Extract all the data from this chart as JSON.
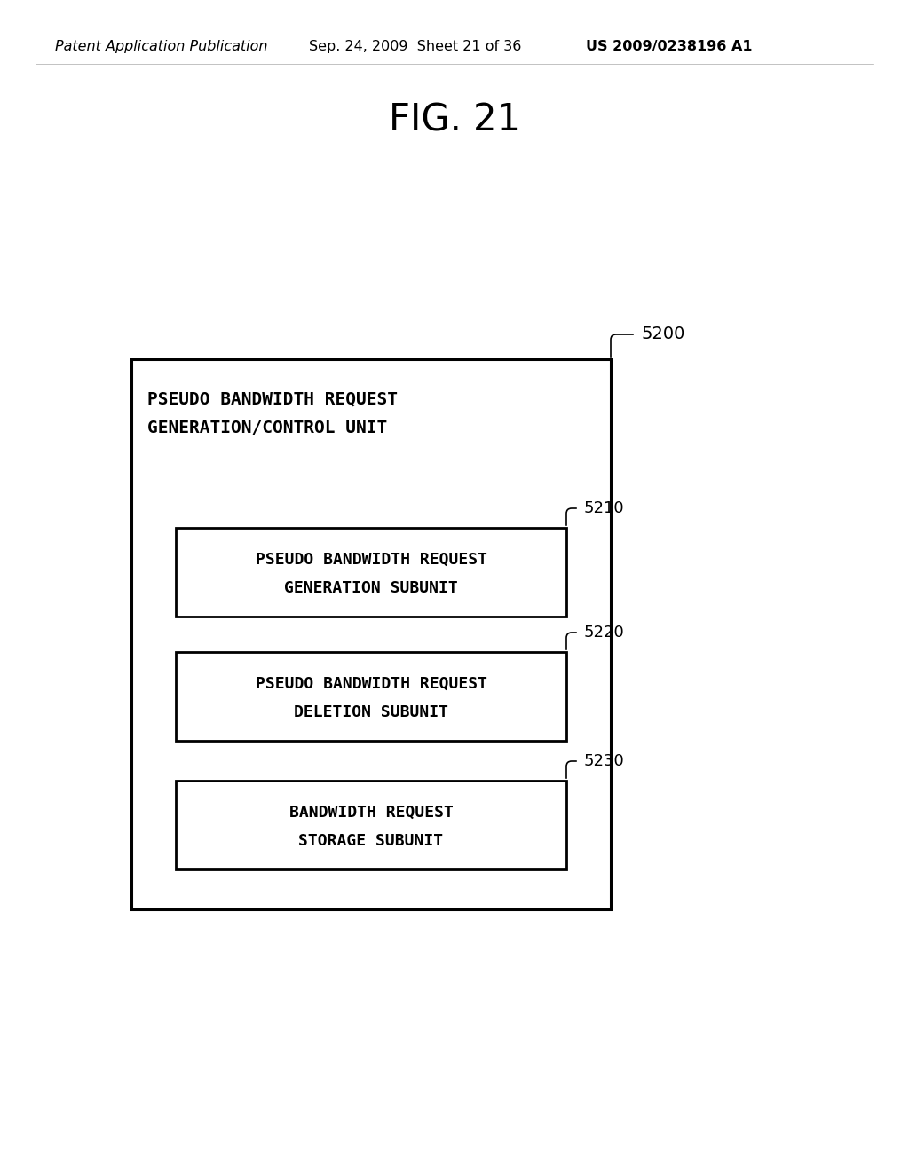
{
  "bg_color": "#ffffff",
  "header_text": "Patent Application Publication",
  "header_date": "Sep. 24, 2009  Sheet 21 of 36",
  "header_patent": "US 2009/0238196 A1",
  "fig_title": "FIG. 21",
  "outer_box_label": "5200",
  "outer_box_title_line1": "PSEUDO BANDWIDTH REQUEST",
  "outer_box_title_line2": "GENERATION/CONTROL UNIT",
  "subunit1_label": "5210",
  "subunit1_line1": "PSEUDO BANDWIDTH REQUEST",
  "subunit1_line2": "GENERATION SUBUNIT",
  "subunit2_label": "5220",
  "subunit2_line1": "PSEUDO BANDWIDTH REQUEST",
  "subunit2_line2": "DELETION SUBUNIT",
  "subunit3_label": "5230",
  "subunit3_line1": "BANDWIDTH REQUEST",
  "subunit3_line2": "STORAGE SUBUNIT",
  "text_color": "#000000",
  "box_edge_color": "#000000"
}
